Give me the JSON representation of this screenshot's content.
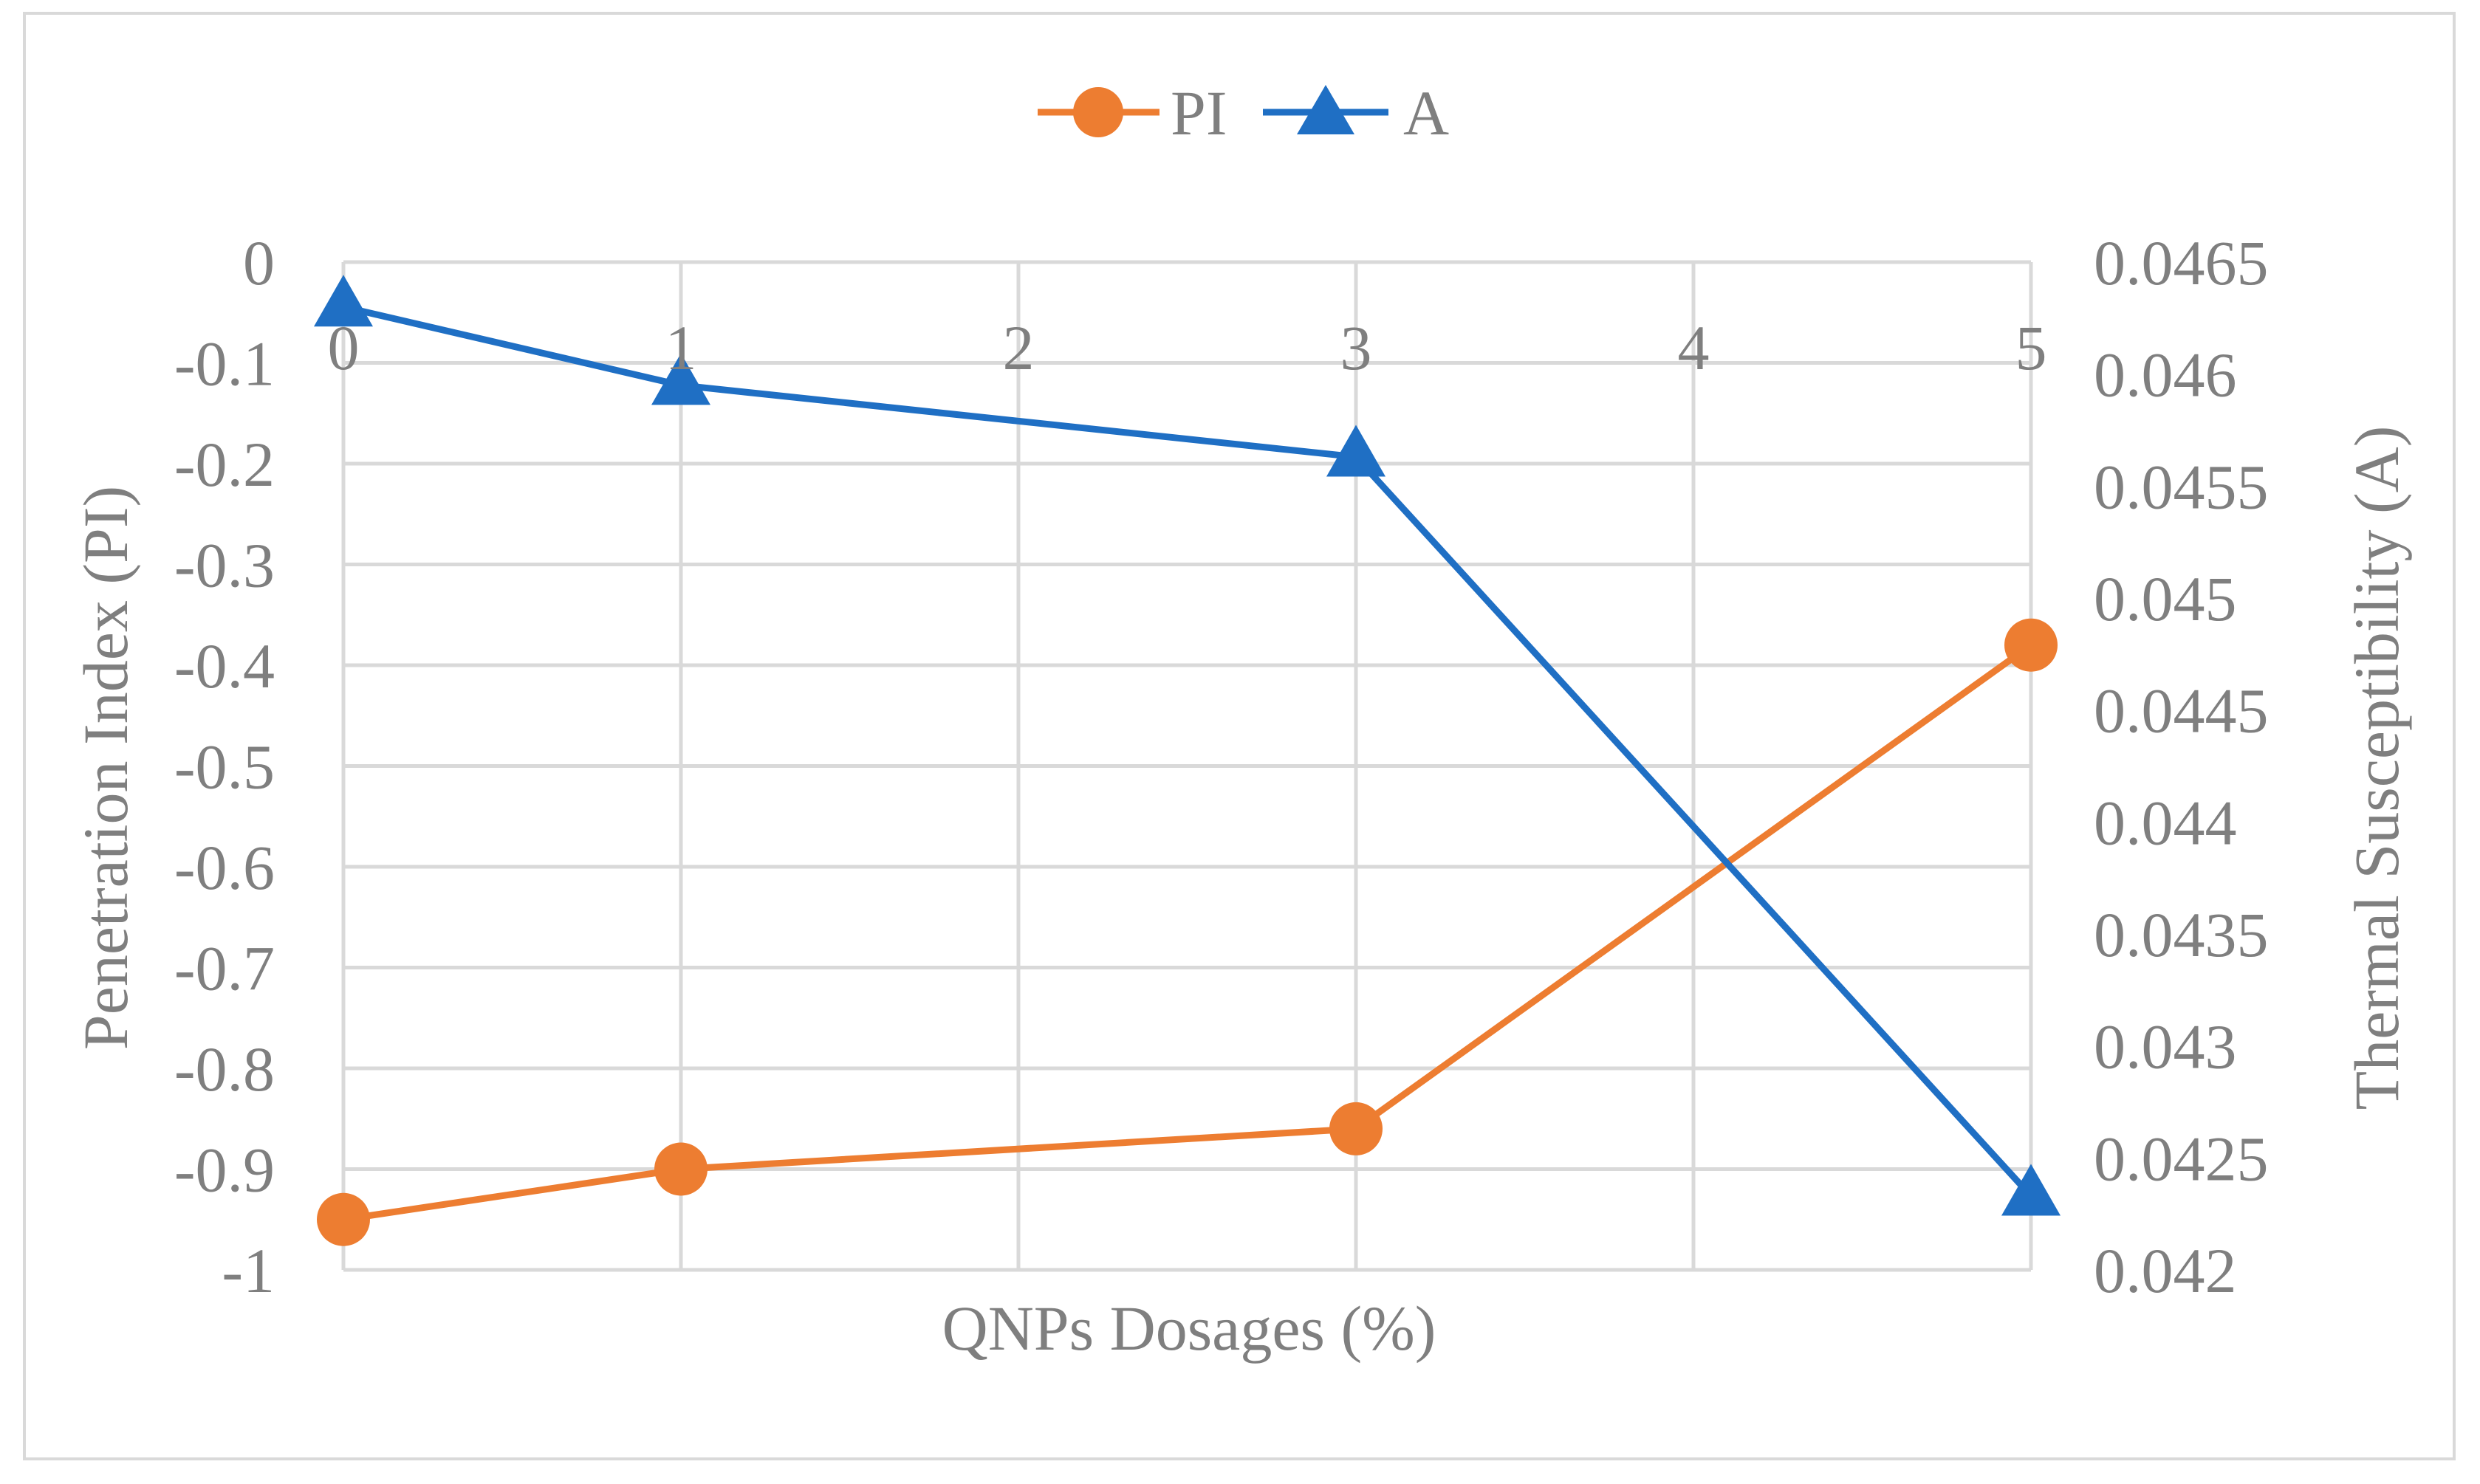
{
  "chart_data": {
    "type": "line",
    "title": "",
    "xlabel": "QNPs Dosages (%)",
    "ylabel": "Penetration Index (PI)",
    "y2label": "Thermal Susceptibility (A)",
    "xlim": [
      0,
      5
    ],
    "x_ticks": [
      "0",
      "1",
      "2",
      "3",
      "4",
      "5"
    ],
    "ylim": [
      -1,
      0
    ],
    "y_ticks": [
      "0",
      "-0.1",
      "-0.2",
      "-0.3",
      "-0.4",
      "-0.5",
      "-0.6",
      "-0.7",
      "-0.8",
      "-0.9",
      "-1"
    ],
    "y2lim": [
      0.042,
      0.0465
    ],
    "y2_ticks": [
      "0.0465",
      "0.046",
      "0.0455",
      "0.045",
      "0.0445",
      "0.044",
      "0.0435",
      "0.043",
      "0.0425",
      "0.042"
    ],
    "grid": true,
    "legend_position": "top-center",
    "series": [
      {
        "name": "PI",
        "axis": "left",
        "marker": "circle",
        "color": "#ED7D31",
        "x": [
          0,
          1,
          3,
          5
        ],
        "values": [
          -0.95,
          -0.9,
          -0.86,
          -0.38
        ]
      },
      {
        "name": "A",
        "axis": "right",
        "marker": "triangle",
        "color": "#1F6FC4",
        "x": [
          0,
          1,
          3,
          5
        ],
        "values": [
          0.0463,
          0.04595,
          0.04563,
          0.04233
        ]
      }
    ]
  }
}
